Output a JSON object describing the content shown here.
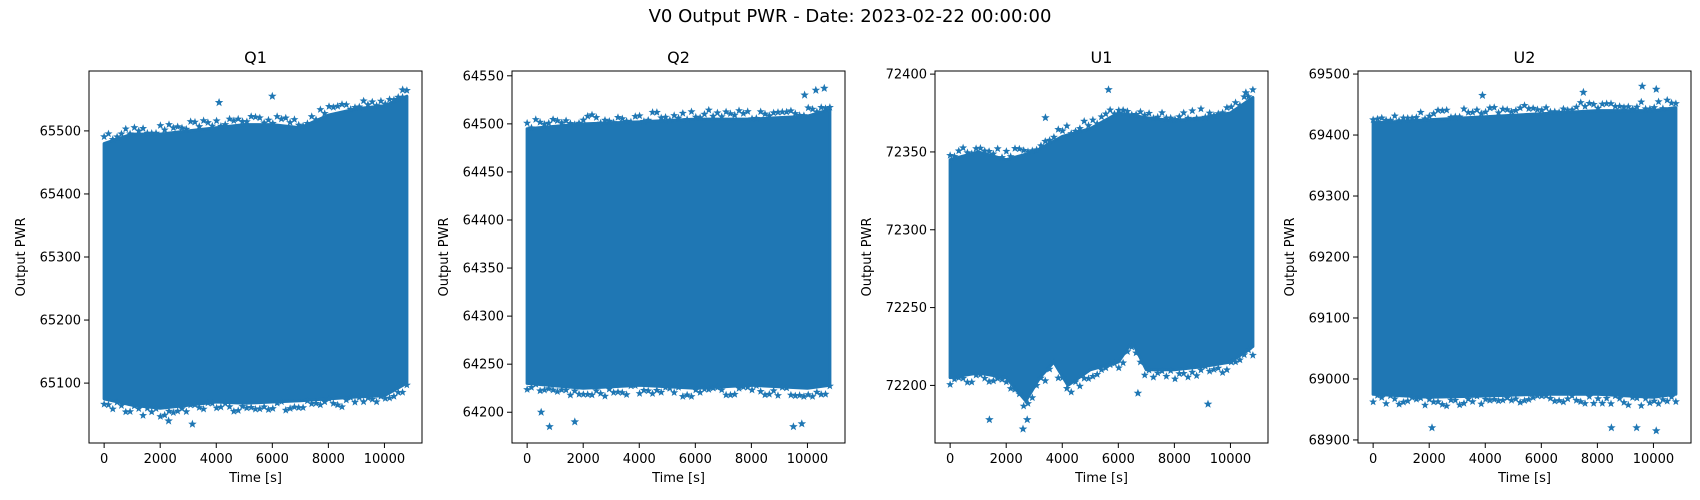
{
  "suptitle": "V0 Output PWR - Date: 2023-02-22 00:00:00",
  "colors": {
    "marker": "#1f77b4",
    "axes": "#000000",
    "background": "#ffffff"
  },
  "chart_data": [
    {
      "type": "scatter",
      "title": "Q1",
      "xlabel": "Time [s]",
      "ylabel": "Output PWR",
      "marker": "star",
      "xlim": [
        -540,
        11340
      ],
      "ylim": [
        65005,
        65595
      ],
      "xticks": [
        0,
        2000,
        4000,
        6000,
        8000,
        10000
      ],
      "yticks": [
        65100,
        65200,
        65300,
        65400,
        65500
      ],
      "x_range": [
        0,
        10800
      ],
      "band_lower": [
        [
          0,
          65075
        ],
        [
          1000,
          65065
        ],
        [
          2000,
          65060
        ],
        [
          3000,
          65065
        ],
        [
          4000,
          65070
        ],
        [
          5000,
          65068
        ],
        [
          6000,
          65070
        ],
        [
          7000,
          65072
        ],
        [
          8000,
          65075
        ],
        [
          9000,
          65078
        ],
        [
          10000,
          65080
        ],
        [
          10800,
          65100
        ]
      ],
      "band_upper": [
        [
          0,
          65480
        ],
        [
          1000,
          65495
        ],
        [
          2000,
          65495
        ],
        [
          3000,
          65500
        ],
        [
          4000,
          65505
        ],
        [
          5000,
          65510
        ],
        [
          6000,
          65510
        ],
        [
          7000,
          65505
        ],
        [
          8000,
          65525
        ],
        [
          9000,
          65535
        ],
        [
          10000,
          65540
        ],
        [
          10800,
          65555
        ]
      ],
      "outliers": [
        [
          4100,
          65545
        ],
        [
          6000,
          65555
        ],
        [
          10650,
          65565
        ],
        [
          3150,
          65035
        ],
        [
          2300,
          65040
        ],
        [
          10500,
          65550
        ]
      ]
    },
    {
      "type": "scatter",
      "title": "Q2",
      "xlabel": "Time [s]",
      "ylabel": "Output PWR",
      "marker": "star",
      "xlim": [
        -540,
        11340
      ],
      "ylim": [
        64168,
        64555
      ],
      "xticks": [
        0,
        2000,
        4000,
        6000,
        8000,
        10000
      ],
      "yticks": [
        64200,
        64250,
        64300,
        64350,
        64400,
        64450,
        64500,
        64550
      ],
      "x_range": [
        0,
        10800
      ],
      "band_lower": [
        [
          0,
          64230
        ],
        [
          2000,
          64225
        ],
        [
          4000,
          64228
        ],
        [
          6000,
          64225
        ],
        [
          8000,
          64228
        ],
        [
          10000,
          64225
        ],
        [
          10800,
          64228
        ]
      ],
      "band_upper": [
        [
          0,
          64495
        ],
        [
          2000,
          64500
        ],
        [
          4000,
          64502
        ],
        [
          6000,
          64505
        ],
        [
          8000,
          64505
        ],
        [
          10000,
          64508
        ],
        [
          10800,
          64515
        ]
      ],
      "outliers": [
        [
          10300,
          64535
        ],
        [
          10600,
          64537
        ],
        [
          9900,
          64530
        ],
        [
          800,
          64185
        ],
        [
          1700,
          64190
        ],
        [
          9800,
          64188
        ],
        [
          9500,
          64185
        ],
        [
          500,
          64200
        ]
      ]
    },
    {
      "type": "scatter",
      "title": "U1",
      "xlabel": "Time [s]",
      "ylabel": "Output PWR",
      "marker": "star",
      "xlim": [
        -540,
        11340
      ],
      "ylim": [
        72163,
        72402
      ],
      "xticks": [
        0,
        2000,
        4000,
        6000,
        8000,
        10000
      ],
      "yticks": [
        72200,
        72250,
        72300,
        72350,
        72400
      ],
      "x_range": [
        0,
        10800
      ],
      "band_lower": [
        [
          0,
          72205
        ],
        [
          1000,
          72208
        ],
        [
          2000,
          72205
        ],
        [
          2700,
          72190
        ],
        [
          3200,
          72205
        ],
        [
          3700,
          72215
        ],
        [
          4200,
          72200
        ],
        [
          5000,
          72210
        ],
        [
          6000,
          72215
        ],
        [
          6500,
          72228
        ],
        [
          7000,
          72210
        ],
        [
          8000,
          72210
        ],
        [
          9000,
          72212
        ],
        [
          10000,
          72215
        ],
        [
          10800,
          72225
        ]
      ],
      "band_upper": [
        [
          0,
          72345
        ],
        [
          1000,
          72350
        ],
        [
          2000,
          72345
        ],
        [
          3000,
          72350
        ],
        [
          4000,
          72360
        ],
        [
          5000,
          72365
        ],
        [
          6000,
          72375
        ],
        [
          7000,
          72372
        ],
        [
          8000,
          72370
        ],
        [
          9000,
          72372
        ],
        [
          10000,
          72375
        ],
        [
          10800,
          72385
        ]
      ],
      "outliers": [
        [
          5650,
          72390
        ],
        [
          10550,
          72388
        ],
        [
          3400,
          72372
        ],
        [
          2600,
          72172
        ],
        [
          2750,
          72178
        ],
        [
          1400,
          72178
        ],
        [
          6700,
          72195
        ],
        [
          9200,
          72188
        ]
      ]
    },
    {
      "type": "scatter",
      "title": "U2",
      "xlabel": "Time [s]",
      "ylabel": "Output PWR",
      "marker": "star",
      "xlim": [
        -540,
        11340
      ],
      "ylim": [
        68895,
        69505
      ],
      "xticks": [
        0,
        2000,
        4000,
        6000,
        8000,
        10000
      ],
      "yticks": [
        68900,
        69000,
        69100,
        69200,
        69300,
        69400,
        69500
      ],
      "x_range": [
        0,
        10800
      ],
      "band_lower": [
        [
          0,
          68975
        ],
        [
          2000,
          68970
        ],
        [
          4000,
          68972
        ],
        [
          6000,
          68975
        ],
        [
          8000,
          68975
        ],
        [
          10000,
          68970
        ],
        [
          10800,
          68975
        ]
      ],
      "band_upper": [
        [
          0,
          69420
        ],
        [
          2000,
          69425
        ],
        [
          4000,
          69430
        ],
        [
          6000,
          69435
        ],
        [
          8000,
          69440
        ],
        [
          10000,
          69440
        ],
        [
          10800,
          69445
        ]
      ],
      "outliers": [
        [
          9600,
          69480
        ],
        [
          10100,
          69475
        ],
        [
          7500,
          69470
        ],
        [
          3900,
          69465
        ],
        [
          2100,
          68920
        ],
        [
          10100,
          68915
        ],
        [
          9400,
          68920
        ],
        [
          8500,
          68920
        ]
      ]
    }
  ]
}
